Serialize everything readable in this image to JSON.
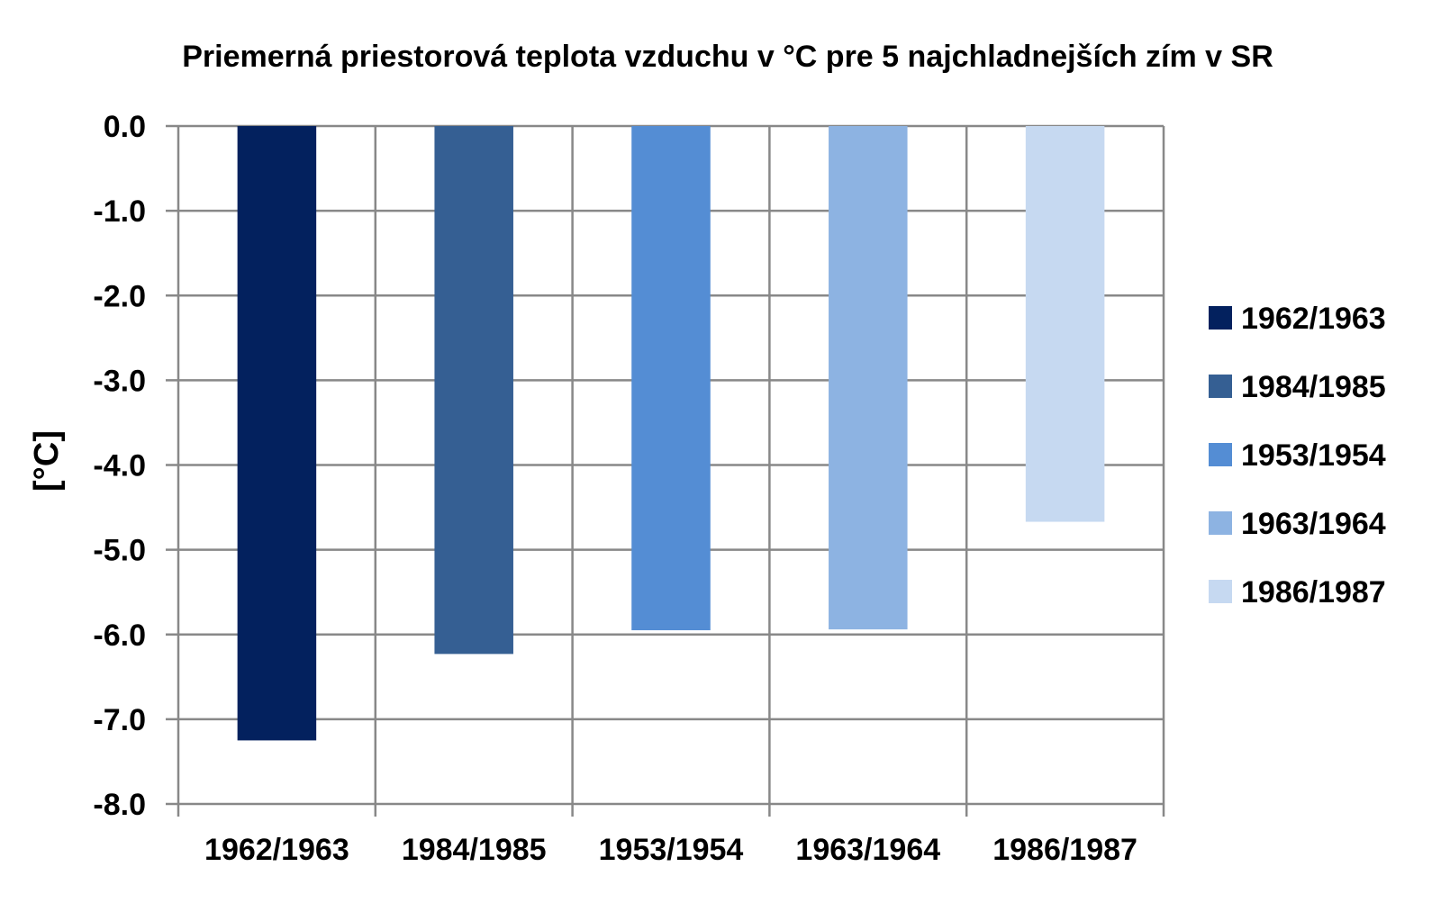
{
  "chart_data": {
    "type": "bar",
    "title": "Priemerná priestorová teplota vzduchu v °C pre 5 najchladnejších zím v SR",
    "xlabel": "",
    "ylabel": "[°C]",
    "ylim": [
      -8.0,
      0.0
    ],
    "yticks": [
      0,
      -1,
      -2,
      -3,
      -4,
      -5,
      -6,
      -7,
      -8
    ],
    "ytick_labels": [
      "0.0",
      "-1.0",
      "-2.0",
      "-3.0",
      "-4.0",
      "-5.0",
      "-6.0",
      "-7.0",
      "-8.0"
    ],
    "categories": [
      "1962/1963",
      "1984/1985",
      "1953/1954",
      "1963/1964",
      "1986/1987"
    ],
    "values": [
      -7.25,
      -6.23,
      -5.95,
      -5.94,
      -4.67
    ],
    "colors": [
      "#03215e",
      "#355f93",
      "#548dd4",
      "#8db3e2",
      "#c6d9f1"
    ],
    "grid": true,
    "grid_color": "#888888",
    "legend": {
      "position": "right",
      "entries": [
        "1962/1963",
        "1984/1985",
        "1953/1954",
        "1963/1964",
        "1986/1987"
      ]
    }
  }
}
